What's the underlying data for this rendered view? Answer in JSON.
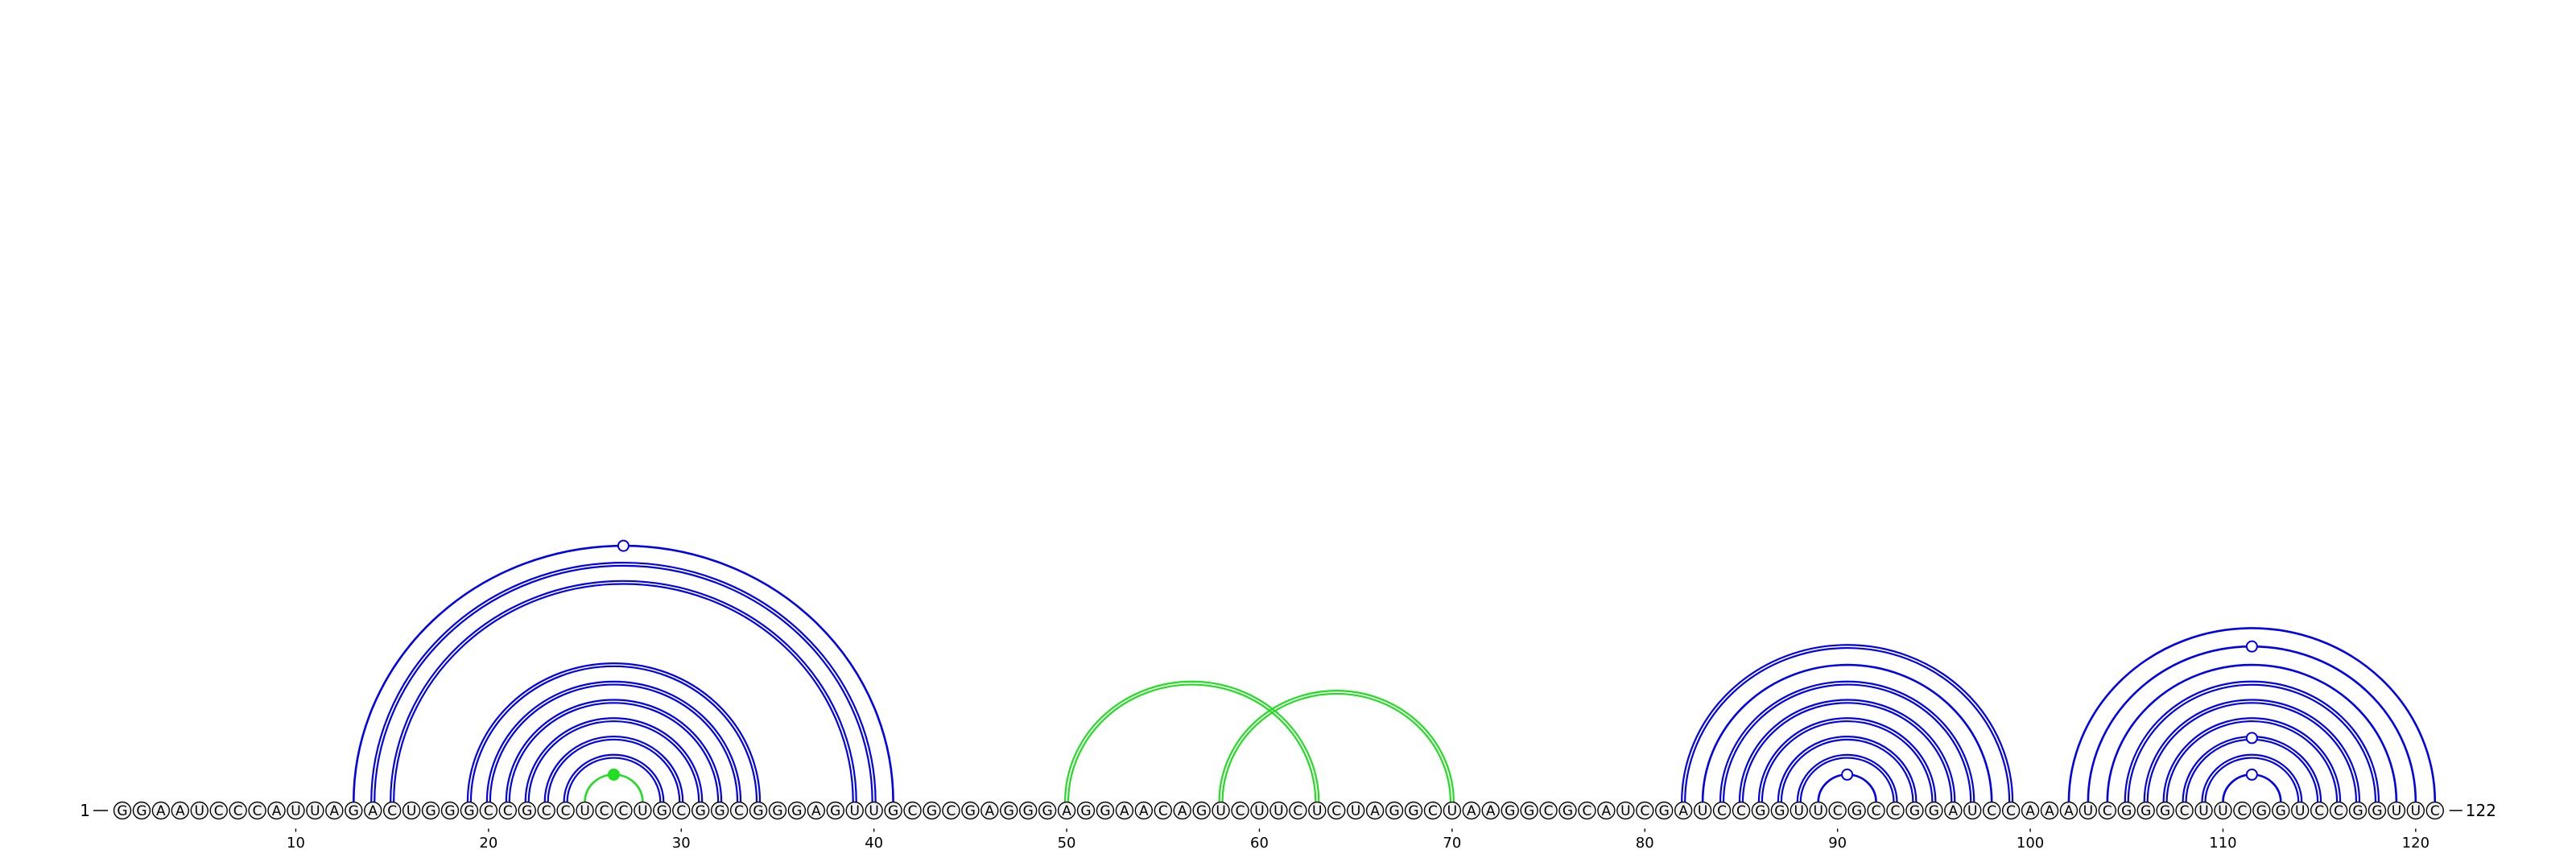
{
  "sequence": "GGAAUCCCAUUAGACUGGGCCGCCUCCUGCGGCGGGAGUUGCGCGAGGGAGGAACAGUCUUCUCUAGGCUAAGGCGCAUCGAUCCGGUUCGCCGGAUCCAAAUCGGGCUUCGGUCCGGUUC",
  "start_label": "1",
  "end_label": "122",
  "ticks": [
    10,
    20,
    30,
    40,
    50,
    60,
    70,
    80,
    90,
    100,
    110,
    120
  ],
  "colors": {
    "nested_pair": "#0000ee",
    "pseudoknot_pair": "#22dd22",
    "base_fill": "#f2f2f2",
    "base_stroke": "#000000",
    "marker_fill": "#ffffff"
  },
  "pairs": [
    {
      "i": 13,
      "j": 41,
      "type": "nested",
      "double": false,
      "marker": true
    },
    {
      "i": 14,
      "j": 40,
      "type": "nested",
      "double": true,
      "marker": false
    },
    {
      "i": 15,
      "j": 39,
      "type": "nested",
      "double": true,
      "marker": false
    },
    {
      "i": 19,
      "j": 34,
      "type": "nested",
      "double": true,
      "marker": false
    },
    {
      "i": 20,
      "j": 33,
      "type": "nested",
      "double": true,
      "marker": false
    },
    {
      "i": 21,
      "j": 32,
      "type": "nested",
      "double": true,
      "marker": false
    },
    {
      "i": 22,
      "j": 31,
      "type": "nested",
      "double": true,
      "marker": false
    },
    {
      "i": 23,
      "j": 30,
      "type": "nested",
      "double": true,
      "marker": false
    },
    {
      "i": 24,
      "j": 29,
      "type": "nested",
      "double": true,
      "marker": false
    },
    {
      "i": 25,
      "j": 28,
      "type": "pseudoknot",
      "double": false,
      "marker": true
    },
    {
      "i": 50,
      "j": 63,
      "type": "pseudoknot",
      "double": true,
      "marker": false
    },
    {
      "i": 58,
      "j": 70,
      "type": "pseudoknot",
      "double": true,
      "marker": false
    },
    {
      "i": 82,
      "j": 99,
      "type": "nested",
      "double": true,
      "marker": false
    },
    {
      "i": 83,
      "j": 98,
      "type": "nested",
      "double": false,
      "marker": false
    },
    {
      "i": 84,
      "j": 97,
      "type": "nested",
      "double": true,
      "marker": false
    },
    {
      "i": 85,
      "j": 96,
      "type": "nested",
      "double": true,
      "marker": false
    },
    {
      "i": 86,
      "j": 95,
      "type": "nested",
      "double": true,
      "marker": false
    },
    {
      "i": 87,
      "j": 94,
      "type": "nested",
      "double": true,
      "marker": false
    },
    {
      "i": 88,
      "j": 93,
      "type": "nested",
      "double": true,
      "marker": false
    },
    {
      "i": 89,
      "j": 92,
      "type": "nested",
      "double": false,
      "marker": true
    },
    {
      "i": 102,
      "j": 121,
      "type": "nested",
      "double": false,
      "marker": false
    },
    {
      "i": 103,
      "j": 120,
      "type": "nested",
      "double": false,
      "marker": true
    },
    {
      "i": 104,
      "j": 119,
      "type": "nested",
      "double": false,
      "marker": false
    },
    {
      "i": 105,
      "j": 118,
      "type": "nested",
      "double": true,
      "marker": false
    },
    {
      "i": 106,
      "j": 117,
      "type": "nested",
      "double": true,
      "marker": false
    },
    {
      "i": 107,
      "j": 116,
      "type": "nested",
      "double": true,
      "marker": false
    },
    {
      "i": 108,
      "j": 115,
      "type": "nested",
      "double": true,
      "marker": true
    },
    {
      "i": 109,
      "j": 114,
      "type": "nested",
      "double": true,
      "marker": false
    },
    {
      "i": 110,
      "j": 113,
      "type": "nested",
      "double": false,
      "marker": true
    }
  ]
}
